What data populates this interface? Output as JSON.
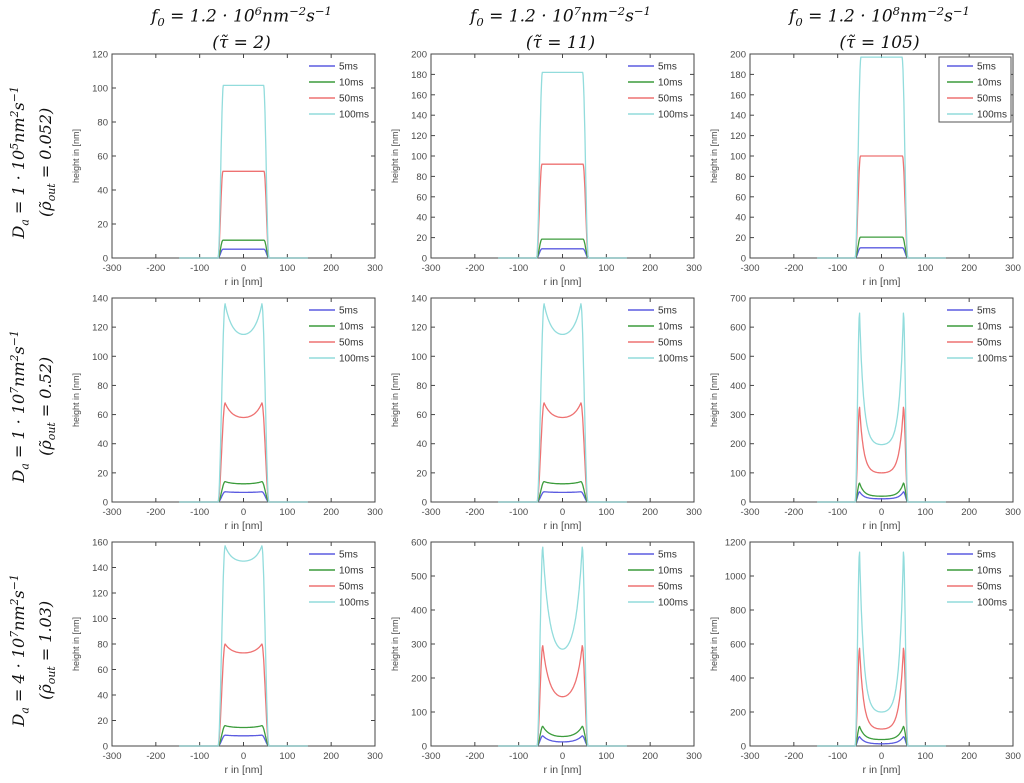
{
  "figure": {
    "columns": [
      {
        "line1": "f_{0} = 1.2 · 10^{6}nm^{−2}s^{−1}",
        "line2": "(τ̃ = 2)"
      },
      {
        "line1": "f_{0} = 1.2 · 10^{7}nm^{−2}s^{−1}",
        "line2": "(τ̃ = 11)"
      },
      {
        "line1": "f_{0} = 1.2 · 10^{8}nm^{−2}s^{−1}",
        "line2": "(τ̃ = 105)"
      }
    ],
    "rows": [
      {
        "line1": "D_{a} = 1 · 10^{5}nm^{2}s^{−1}",
        "line2": "(ρ̃_{out} = 0.052)"
      },
      {
        "line1": "D_{a} = 1 · 10^{7}nm^{2}s^{−1}",
        "line2": "(ρ̃_{out} = 0.52)"
      },
      {
        "line1": "D_{a} = 4 · 10^{7}nm^{2}s^{−1}",
        "line2": "(ρ̃_{out} = 1.03)"
      }
    ]
  },
  "legend": {
    "position": "top-right",
    "entries": [
      {
        "label": "5ms",
        "color": "#5b5be0"
      },
      {
        "label": "10ms",
        "color": "#3c9c3c"
      },
      {
        "label": "50ms",
        "color": "#ee7272"
      },
      {
        "label": "100ms",
        "color": "#92dcdc"
      }
    ]
  },
  "axes": {
    "xlabel": "r in [nm]",
    "ylabel": "height in [nm]",
    "xlim": [
      -300,
      300
    ],
    "xtick_step": 100,
    "x_extent_nm": 147,
    "grid": false,
    "axis_color": "#454545"
  },
  "chart_data": [
    {
      "grid_pos": [
        0,
        0
      ],
      "type": "line",
      "ylim": [
        0,
        120
      ],
      "ytick_step": 20,
      "legend_box": false,
      "series": [
        {
          "label": "5ms",
          "edge_peak_nm": 5.2,
          "center_nm": 5.2,
          "r_peak_nm": 47,
          "r_base_nm": 58,
          "dip_sharpness": 1
        },
        {
          "label": "10ms",
          "edge_peak_nm": 10.5,
          "center_nm": 10.5,
          "r_peak_nm": 47,
          "r_base_nm": 58,
          "dip_sharpness": 1
        },
        {
          "label": "50ms",
          "edge_peak_nm": 51,
          "center_nm": 51,
          "r_peak_nm": 47,
          "r_base_nm": 58,
          "dip_sharpness": 1
        },
        {
          "label": "100ms",
          "edge_peak_nm": 101.5,
          "center_nm": 101.5,
          "r_peak_nm": 46,
          "r_base_nm": 58,
          "dip_sharpness": 1
        }
      ]
    },
    {
      "grid_pos": [
        0,
        1
      ],
      "type": "line",
      "ylim": [
        0,
        200
      ],
      "ytick_step": 20,
      "legend_box": false,
      "series": [
        {
          "label": "5ms",
          "edge_peak_nm": 9,
          "center_nm": 9,
          "r_peak_nm": 47,
          "r_base_nm": 59,
          "dip_sharpness": 1
        },
        {
          "label": "10ms",
          "edge_peak_nm": 18.5,
          "center_nm": 18.5,
          "r_peak_nm": 47,
          "r_base_nm": 59,
          "dip_sharpness": 1
        },
        {
          "label": "50ms",
          "edge_peak_nm": 92,
          "center_nm": 92,
          "r_peak_nm": 47,
          "r_base_nm": 59,
          "dip_sharpness": 1
        },
        {
          "label": "100ms",
          "edge_peak_nm": 182,
          "center_nm": 182,
          "r_peak_nm": 46,
          "r_base_nm": 59,
          "dip_sharpness": 1
        }
      ]
    },
    {
      "grid_pos": [
        0,
        2
      ],
      "type": "line",
      "ylim": [
        0,
        200
      ],
      "ytick_step": 20,
      "legend_box": true,
      "series": [
        {
          "label": "5ms",
          "edge_peak_nm": 10,
          "center_nm": 10,
          "r_peak_nm": 48,
          "r_base_nm": 60,
          "dip_sharpness": 1
        },
        {
          "label": "10ms",
          "edge_peak_nm": 20.5,
          "center_nm": 20.5,
          "r_peak_nm": 48,
          "r_base_nm": 60,
          "dip_sharpness": 1
        },
        {
          "label": "50ms",
          "edge_peak_nm": 100,
          "center_nm": 100,
          "r_peak_nm": 48,
          "r_base_nm": 60,
          "dip_sharpness": 1
        },
        {
          "label": "100ms",
          "edge_peak_nm": 197,
          "center_nm": 197,
          "r_peak_nm": 47,
          "r_base_nm": 60,
          "dip_sharpness": 1
        }
      ]
    },
    {
      "grid_pos": [
        1,
        0
      ],
      "type": "line",
      "ylim": [
        0,
        140
      ],
      "ytick_step": 20,
      "legend_box": false,
      "series": [
        {
          "label": "5ms",
          "edge_peak_nm": 7,
          "center_nm": 6.6,
          "r_peak_nm": 42,
          "r_base_nm": 58,
          "dip_sharpness": 1.5
        },
        {
          "label": "10ms",
          "edge_peak_nm": 14,
          "center_nm": 12.5,
          "r_peak_nm": 42,
          "r_base_nm": 58,
          "dip_sharpness": 2.5
        },
        {
          "label": "50ms",
          "edge_peak_nm": 68,
          "center_nm": 58,
          "r_peak_nm": 42,
          "r_base_nm": 58,
          "dip_sharpness": 2.5
        },
        {
          "label": "100ms",
          "edge_peak_nm": 136,
          "center_nm": 115,
          "r_peak_nm": 42,
          "r_base_nm": 58,
          "dip_sharpness": 2.5
        }
      ]
    },
    {
      "grid_pos": [
        1,
        1
      ],
      "type": "line",
      "ylim": [
        0,
        140
      ],
      "ytick_step": 20,
      "legend_box": false,
      "series": [
        {
          "label": "5ms",
          "edge_peak_nm": 7,
          "center_nm": 6.6,
          "r_peak_nm": 42,
          "r_base_nm": 58,
          "dip_sharpness": 1.5
        },
        {
          "label": "10ms",
          "edge_peak_nm": 14,
          "center_nm": 12.5,
          "r_peak_nm": 42,
          "r_base_nm": 58,
          "dip_sharpness": 2.5
        },
        {
          "label": "50ms",
          "edge_peak_nm": 68,
          "center_nm": 58,
          "r_peak_nm": 42,
          "r_base_nm": 58,
          "dip_sharpness": 2.5
        },
        {
          "label": "100ms",
          "edge_peak_nm": 136,
          "center_nm": 115,
          "r_peak_nm": 42,
          "r_base_nm": 58,
          "dip_sharpness": 2.5
        }
      ]
    },
    {
      "grid_pos": [
        1,
        2
      ],
      "type": "line",
      "ylim": [
        0,
        700
      ],
      "ytick_step": 100,
      "legend_box": false,
      "series": [
        {
          "label": "5ms",
          "edge_peak_nm": 35,
          "center_nm": 11,
          "r_peak_nm": 50,
          "r_base_nm": 60,
          "dip_sharpness": 5
        },
        {
          "label": "10ms",
          "edge_peak_nm": 65,
          "center_nm": 20,
          "r_peak_nm": 50,
          "r_base_nm": 60,
          "dip_sharpness": 5
        },
        {
          "label": "50ms",
          "edge_peak_nm": 325,
          "center_nm": 100,
          "r_peak_nm": 50,
          "r_base_nm": 60,
          "dip_sharpness": 5.5
        },
        {
          "label": "100ms",
          "edge_peak_nm": 648,
          "center_nm": 197,
          "r_peak_nm": 50,
          "r_base_nm": 60,
          "dip_sharpness": 5.5
        }
      ]
    },
    {
      "grid_pos": [
        2,
        0
      ],
      "type": "line",
      "ylim": [
        0,
        160
      ],
      "ytick_step": 20,
      "legend_box": false,
      "series": [
        {
          "label": "5ms",
          "edge_peak_nm": 8.5,
          "center_nm": 8,
          "r_peak_nm": 42,
          "r_base_nm": 58,
          "dip_sharpness": 2
        },
        {
          "label": "10ms",
          "edge_peak_nm": 16,
          "center_nm": 14.5,
          "r_peak_nm": 42,
          "r_base_nm": 58,
          "dip_sharpness": 2.5
        },
        {
          "label": "50ms",
          "edge_peak_nm": 80,
          "center_nm": 73,
          "r_peak_nm": 42,
          "r_base_nm": 58,
          "dip_sharpness": 2.5
        },
        {
          "label": "100ms",
          "edge_peak_nm": 157,
          "center_nm": 145,
          "r_peak_nm": 42,
          "r_base_nm": 58,
          "dip_sharpness": 2.8
        }
      ]
    },
    {
      "grid_pos": [
        2,
        1
      ],
      "type": "line",
      "ylim": [
        0,
        600
      ],
      "ytick_step": 100,
      "legend_box": false,
      "series": [
        {
          "label": "5ms",
          "edge_peak_nm": 30,
          "center_nm": 12,
          "r_peak_nm": 45,
          "r_base_nm": 58,
          "dip_sharpness": 3
        },
        {
          "label": "10ms",
          "edge_peak_nm": 58,
          "center_nm": 28,
          "r_peak_nm": 45,
          "r_base_nm": 58,
          "dip_sharpness": 3
        },
        {
          "label": "50ms",
          "edge_peak_nm": 295,
          "center_nm": 145,
          "r_peak_nm": 45,
          "r_base_nm": 58,
          "dip_sharpness": 3
        },
        {
          "label": "100ms",
          "edge_peak_nm": 585,
          "center_nm": 285,
          "r_peak_nm": 45,
          "r_base_nm": 58,
          "dip_sharpness": 3
        }
      ]
    },
    {
      "grid_pos": [
        2,
        2
      ],
      "type": "line",
      "ylim": [
        0,
        1200
      ],
      "ytick_step": 200,
      "legend_box": false,
      "series": [
        {
          "label": "5ms",
          "edge_peak_nm": 55,
          "center_nm": 13,
          "r_peak_nm": 50,
          "r_base_nm": 60,
          "dip_sharpness": 4.5
        },
        {
          "label": "10ms",
          "edge_peak_nm": 115,
          "center_nm": 38,
          "r_peak_nm": 50,
          "r_base_nm": 60,
          "dip_sharpness": 4.5
        },
        {
          "label": "50ms",
          "edge_peak_nm": 575,
          "center_nm": 100,
          "r_peak_nm": 50,
          "r_base_nm": 60,
          "dip_sharpness": 5.5
        },
        {
          "label": "100ms",
          "edge_peak_nm": 1140,
          "center_nm": 200,
          "r_peak_nm": 50,
          "r_base_nm": 60,
          "dip_sharpness": 5.5
        }
      ]
    }
  ]
}
